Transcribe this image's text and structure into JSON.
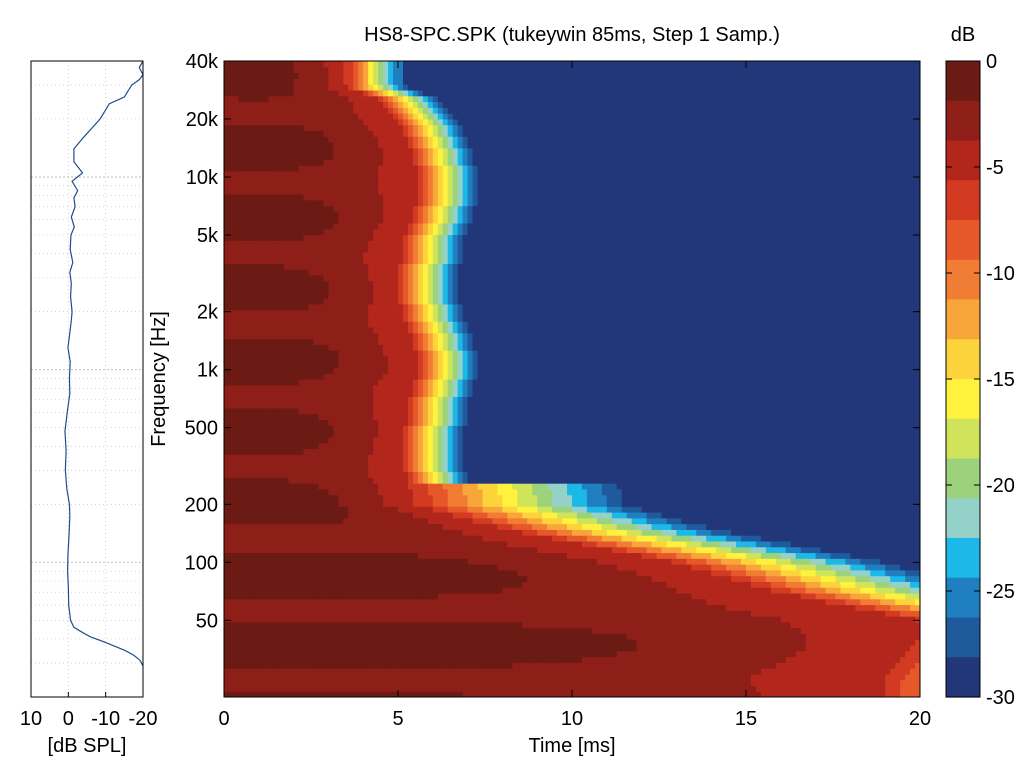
{
  "chart_data": [
    {
      "type": "line",
      "panel": "frequency-response",
      "xlabel": "[dB SPL]",
      "x_tick_labels": [
        "10",
        "0",
        "-10",
        "-20"
      ],
      "x_ticks": [
        10,
        0,
        -10,
        -20
      ],
      "xlim": [
        10,
        -20
      ],
      "x_reversed": true,
      "ylim": [
        20,
        40000
      ],
      "y_scale": "log",
      "grid": true,
      "color": "#1f4e8c",
      "series": [
        {
          "x": [
            -20,
            -19.2,
            -17.5,
            -15,
            -12,
            -9,
            -6,
            -4,
            -1.5,
            -0.6,
            -0.1,
            0.0,
            0.2,
            0.1,
            -0.2,
            -0.4,
            -0.3,
            0.4,
            0.8,
            0.6,
            0.9,
            0.3,
            -0.4,
            -0.3,
            -0.5,
            0.1,
            -0.3,
            -0.8,
            -1.0,
            -0.6,
            -0.8,
            -0.4,
            -1.2,
            -0.5,
            -0.7,
            -1.6,
            -0.8,
            -1.8,
            -1.5,
            -2.5,
            -1.0,
            -3.8,
            -1.5,
            -1.5,
            -4.0,
            -8.5,
            -11.0,
            -15.0,
            -16.0,
            -17.0,
            -19.0,
            -20.0,
            -19.0,
            -20.0
          ],
          "y": [
            29,
            31,
            33,
            35,
            37,
            39,
            41,
            43,
            46,
            50,
            60,
            75,
            90,
            110,
            140,
            175,
            200,
            240,
            300,
            380,
            480,
            600,
            750,
            900,
            1100,
            1300,
            1500,
            1800,
            2000,
            2400,
            2800,
            3200,
            3600,
            4200,
            5000,
            5500,
            6200,
            7000,
            7800,
            8500,
            9500,
            10500,
            12000,
            14000,
            16000,
            20000,
            24000,
            26000,
            28000,
            30000,
            32000,
            34000,
            37000,
            40000
          ]
        }
      ]
    },
    {
      "type": "heatmap",
      "panel": "waterfall",
      "title": "HS8-SPC.SPK (tukeywin 85ms, Step 1 Samp.)",
      "xlabel": "Time [ms]",
      "ylabel": "Frequency [Hz]",
      "xlim": [
        0,
        20
      ],
      "x_ticks": [
        0,
        5,
        10,
        15,
        20
      ],
      "ylim": [
        20,
        40000
      ],
      "y_scale": "log",
      "y_ticks": [
        50,
        100,
        200,
        500,
        1000,
        2000,
        5000,
        10000,
        20000,
        40000
      ],
      "y_tick_labels": [
        "50",
        "100",
        "200",
        "500",
        "1k",
        "2k",
        "5k",
        "10k",
        "20k",
        "40k"
      ],
      "value_label": "dB",
      "zlim": [
        -30,
        0
      ],
      "colorbar": {
        "label": "dB",
        "ticks": [
          0,
          -5,
          -10,
          -15,
          -20,
          -25,
          -30
        ],
        "tick_labels": [
          "0",
          "-5",
          "-10",
          "-15",
          "-20",
          "-25",
          "-30"
        ],
        "placement": "right",
        "colors": [
          "#6b1a14",
          "#8e1f18",
          "#b3261c",
          "#d23a22",
          "#e6572a",
          "#f07d33",
          "#f8a63a",
          "#fdd33b",
          "#fff23f",
          "#cfe45a",
          "#9dd27c",
          "#94d1c8",
          "#1cb8e8",
          "#1f7fc0",
          "#1f5a9c",
          "#22367a"
        ]
      },
      "decay_ms_by_band": [
        {
          "freq_hz": 25,
          "decay_ms": 19
        },
        {
          "freq_hz": 40,
          "decay_ms": 20
        },
        {
          "freq_hz": 50,
          "decay_ms": 20
        },
        {
          "freq_hz": 70,
          "decay_ms": 16
        },
        {
          "freq_hz": 100,
          "decay_ms": 13
        },
        {
          "freq_hz": 150,
          "decay_ms": 8
        },
        {
          "freq_hz": 200,
          "decay_ms": 5.5
        },
        {
          "freq_hz": 300,
          "decay_ms": 5.2
        },
        {
          "freq_hz": 500,
          "decay_ms": 5.2
        },
        {
          "freq_hz": 700,
          "decay_ms": 5.3
        },
        {
          "freq_hz": 1000,
          "decay_ms": 5.6
        },
        {
          "freq_hz": 1500,
          "decay_ms": 5.4
        },
        {
          "freq_hz": 2000,
          "decay_ms": 5.1
        },
        {
          "freq_hz": 3000,
          "decay_ms": 5.0
        },
        {
          "freq_hz": 5000,
          "decay_ms": 5.2
        },
        {
          "freq_hz": 7000,
          "decay_ms": 5.5
        },
        {
          "freq_hz": 10000,
          "decay_ms": 5.6
        },
        {
          "freq_hz": 15000,
          "decay_ms": 5.3
        },
        {
          "freq_hz": 20000,
          "decay_ms": 5.0
        },
        {
          "freq_hz": 25000,
          "decay_ms": 4.5
        },
        {
          "freq_hz": 30000,
          "decay_ms": 3.5
        },
        {
          "freq_hz": 35000,
          "decay_ms": 3.5
        }
      ]
    }
  ]
}
